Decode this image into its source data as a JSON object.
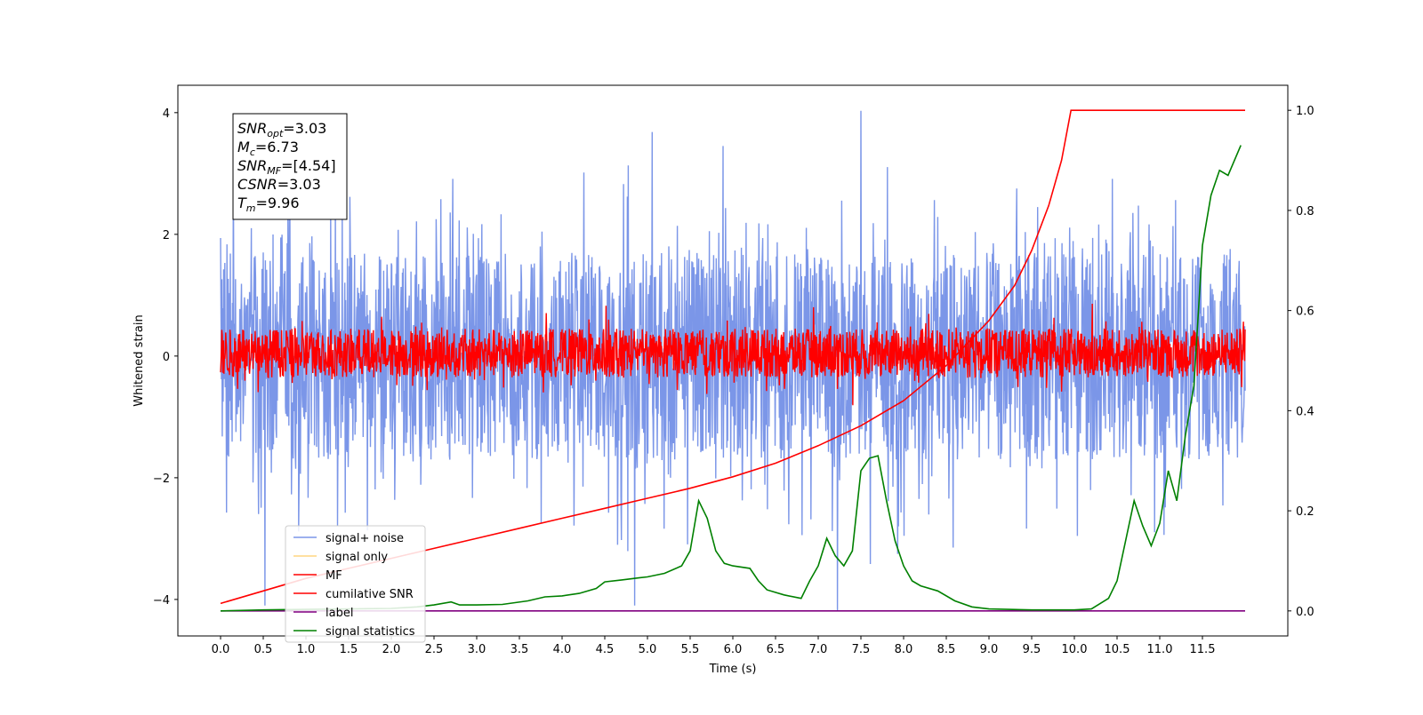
{
  "chart_data": {
    "type": "line",
    "xlabel": "Time (s)",
    "ylabel": "Whitened strain",
    "xlim": [
      -0.5,
      12.5
    ],
    "ylim": [
      -4.6,
      4.45
    ],
    "y2lim": [
      -0.05,
      1.05
    ],
    "grid": false,
    "legend_position": "bottom-left",
    "x_ticks": [
      "0.0",
      "0.5",
      "1.0",
      "1.5",
      "2.0",
      "2.5",
      "3.0",
      "3.5",
      "4.0",
      "4.5",
      "5.0",
      "5.5",
      "6.0",
      "6.5",
      "7.0",
      "7.5",
      "8.0",
      "8.5",
      "9.0",
      "9.5",
      "10.0",
      "10.5",
      "11.0",
      "11.5"
    ],
    "y_ticks": [
      "4",
      "2",
      "0",
      "−2",
      "−4"
    ],
    "y2_ticks": [
      "1.0",
      "0.8",
      "0.6",
      "0.4",
      "0.2",
      "0.0"
    ],
    "annotation": {
      "lines": [
        {
          "main": "SNR",
          "sub": "opt",
          "value": "=3.03"
        },
        {
          "main": "M",
          "sub": "c",
          "value": "=6.73"
        },
        {
          "main": "SNR",
          "sub": "MF",
          "value": "=[4.54]"
        },
        {
          "main": "CSNR",
          "sub": "",
          "value": "=3.03"
        },
        {
          "main": "T",
          "sub": "m",
          "value": "=9.96"
        }
      ]
    },
    "series": [
      {
        "name": "signal+ noise",
        "color": "#7b96e8",
        "axis": "left",
        "x_range": [
          0.0,
          12.0
        ],
        "band_low": -1.7,
        "band_high": 1.7,
        "peak_high": 4.03,
        "peak_low": -4.1,
        "peak_x": 7.5
      },
      {
        "name": "signal only",
        "color": "#ffd580",
        "axis": "left"
      },
      {
        "name": "MF",
        "color": "#ff0000",
        "axis": "left",
        "x_range": [
          0.0,
          12.0
        ],
        "band_low": -0.35,
        "band_high": 0.45
      },
      {
        "name": "cumilative SNR",
        "color": "#ff0000",
        "axis": "right",
        "x": [
          0.0,
          0.5,
          1.0,
          1.5,
          2.0,
          2.5,
          3.0,
          3.5,
          4.0,
          4.5,
          5.0,
          5.5,
          6.0,
          6.5,
          7.0,
          7.5,
          8.0,
          8.5,
          9.0,
          9.3,
          9.5,
          9.7,
          9.85,
          9.96,
          10.5,
          11.0,
          11.5,
          12.0
        ],
        "y": [
          0.015,
          0.04,
          0.065,
          0.085,
          0.105,
          0.125,
          0.145,
          0.165,
          0.185,
          0.205,
          0.225,
          0.245,
          0.268,
          0.295,
          0.33,
          0.37,
          0.42,
          0.49,
          0.58,
          0.65,
          0.72,
          0.81,
          0.9,
          1.0,
          1.0,
          1.0,
          1.0,
          1.0
        ]
      },
      {
        "name": "label",
        "color": "#800080",
        "axis": "right",
        "x": [
          0.0,
          12.0
        ],
        "y": [
          0.0,
          0.0
        ]
      },
      {
        "name": "signal statistics",
        "color": "#008000",
        "axis": "right",
        "x": [
          0.0,
          0.5,
          1.0,
          1.5,
          2.0,
          2.3,
          2.5,
          2.7,
          2.8,
          3.0,
          3.3,
          3.6,
          3.8,
          4.0,
          4.2,
          4.4,
          4.5,
          4.7,
          4.9,
          5.0,
          5.2,
          5.4,
          5.5,
          5.6,
          5.7,
          5.8,
          5.9,
          6.0,
          6.2,
          6.3,
          6.4,
          6.6,
          6.8,
          6.9,
          7.0,
          7.1,
          7.2,
          7.3,
          7.4,
          7.5,
          7.6,
          7.7,
          7.8,
          7.9,
          8.0,
          8.1,
          8.2,
          8.4,
          8.6,
          8.8,
          9.0,
          9.5,
          10.0,
          10.2,
          10.4,
          10.5,
          10.6,
          10.7,
          10.8,
          10.9,
          11.0,
          11.1,
          11.2,
          11.3,
          11.4,
          11.5,
          11.6,
          11.7,
          11.8,
          11.95
        ],
        "y": [
          0.0,
          0.002,
          0.003,
          0.004,
          0.005,
          0.008,
          0.012,
          0.018,
          0.012,
          0.012,
          0.013,
          0.02,
          0.028,
          0.03,
          0.035,
          0.045,
          0.058,
          0.062,
          0.066,
          0.068,
          0.075,
          0.09,
          0.12,
          0.22,
          0.185,
          0.12,
          0.095,
          0.09,
          0.085,
          0.06,
          0.042,
          0.032,
          0.025,
          0.06,
          0.09,
          0.145,
          0.11,
          0.09,
          0.12,
          0.28,
          0.305,
          0.31,
          0.22,
          0.14,
          0.09,
          0.06,
          0.05,
          0.04,
          0.02,
          0.008,
          0.004,
          0.002,
          0.002,
          0.004,
          0.025,
          0.06,
          0.14,
          0.22,
          0.17,
          0.13,
          0.175,
          0.28,
          0.22,
          0.35,
          0.45,
          0.73,
          0.83,
          0.88,
          0.87,
          0.93
        ]
      }
    ]
  }
}
